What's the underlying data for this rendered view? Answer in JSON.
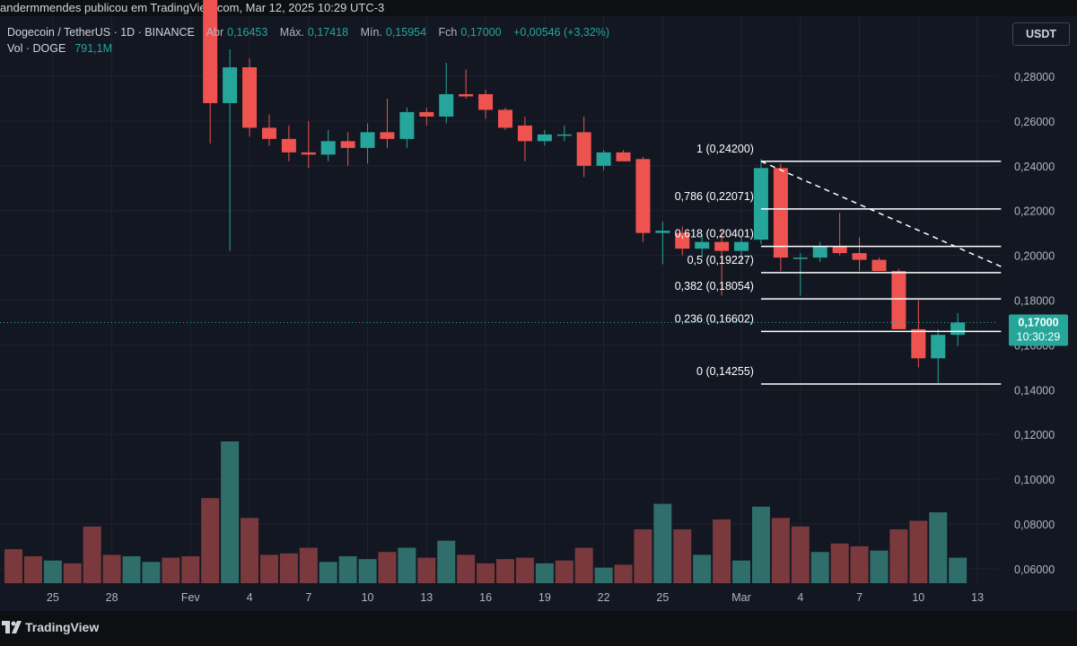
{
  "header": {
    "published_by": "andermmendes publicou em TradingView.com, Mar 12, 2025 10:29 UTC-3"
  },
  "legend": {
    "symbol": "Dogecoin / TetherUS · 1D · BINANCE",
    "open_label": "Abr",
    "open_value": "0,16453",
    "high_label": "Máx.",
    "high_value": "0,17418",
    "low_label": "Mín.",
    "low_value": "0,15954",
    "close_label": "Fch",
    "close_value": "0,17000",
    "change": "+0,00546 (+3,32%)",
    "volume_label": "Vol · DOGE",
    "volume_value": "791,1M"
  },
  "currency_button": "USDT",
  "price_tag": {
    "price": "0,17000",
    "countdown": "10:30:29"
  },
  "footer": {
    "logo_text": "TradingView"
  },
  "colors": {
    "background": "#131722",
    "up": "#26a69a",
    "down": "#ef5350",
    "grid": "#1f2330",
    "fib_line": "#ffffff"
  },
  "chart_data": {
    "type": "candlestick",
    "y_axis": {
      "ticks": [
        0.28,
        0.26,
        0.24,
        0.22,
        0.2,
        0.18,
        0.16,
        0.14,
        0.12,
        0.1,
        0.08,
        0.06
      ],
      "tick_labels": [
        "0,28000",
        "0,26000",
        "0,24000",
        "0,22000",
        "0,20000",
        "0,18000",
        "0,16000",
        "0,14000",
        "0,12000",
        "0,10000",
        "0,08000",
        "0,06000"
      ],
      "position": "right"
    },
    "x_axis": {
      "labels": [
        {
          "day": 2,
          "text": "25"
        },
        {
          "day": 5,
          "text": "28"
        },
        {
          "day": 9,
          "text": "Fev"
        },
        {
          "day": 12,
          "text": "4"
        },
        {
          "day": 15,
          "text": "7"
        },
        {
          "day": 18,
          "text": "10"
        },
        {
          "day": 21,
          "text": "13"
        },
        {
          "day": 24,
          "text": "16"
        },
        {
          "day": 27,
          "text": "19"
        },
        {
          "day": 30,
          "text": "22"
        },
        {
          "day": 33,
          "text": "25"
        },
        {
          "day": 37,
          "text": "Mar"
        },
        {
          "day": 40,
          "text": "4"
        },
        {
          "day": 43,
          "text": "7"
        },
        {
          "day": 46,
          "text": "10"
        },
        {
          "day": 49,
          "text": "13"
        }
      ]
    },
    "candles": [
      {
        "day": 10,
        "o": 0.35,
        "h": 0.36,
        "l": 0.25,
        "c": 0.268
      },
      {
        "day": 11,
        "o": 0.268,
        "h": 0.292,
        "l": 0.202,
        "c": 0.284
      },
      {
        "day": 12,
        "o": 0.284,
        "h": 0.288,
        "l": 0.253,
        "c": 0.257
      },
      {
        "day": 13,
        "o": 0.257,
        "h": 0.263,
        "l": 0.249,
        "c": 0.252
      },
      {
        "day": 14,
        "o": 0.252,
        "h": 0.258,
        "l": 0.242,
        "c": 0.246
      },
      {
        "day": 15,
        "o": 0.246,
        "h": 0.26,
        "l": 0.239,
        "c": 0.245
      },
      {
        "day": 16,
        "o": 0.245,
        "h": 0.256,
        "l": 0.242,
        "c": 0.251
      },
      {
        "day": 17,
        "o": 0.251,
        "h": 0.255,
        "l": 0.24,
        "c": 0.248
      },
      {
        "day": 18,
        "o": 0.248,
        "h": 0.259,
        "l": 0.241,
        "c": 0.255
      },
      {
        "day": 19,
        "o": 0.255,
        "h": 0.27,
        "l": 0.248,
        "c": 0.252
      },
      {
        "day": 20,
        "o": 0.252,
        "h": 0.266,
        "l": 0.248,
        "c": 0.264
      },
      {
        "day": 21,
        "o": 0.264,
        "h": 0.266,
        "l": 0.258,
        "c": 0.262
      },
      {
        "day": 22,
        "o": 0.262,
        "h": 0.286,
        "l": 0.259,
        "c": 0.272
      },
      {
        "day": 23,
        "o": 0.272,
        "h": 0.283,
        "l": 0.27,
        "c": 0.271
      },
      {
        "day": 24,
        "o": 0.272,
        "h": 0.274,
        "l": 0.261,
        "c": 0.265
      },
      {
        "day": 25,
        "o": 0.265,
        "h": 0.266,
        "l": 0.256,
        "c": 0.257
      },
      {
        "day": 26,
        "o": 0.258,
        "h": 0.262,
        "l": 0.242,
        "c": 0.251
      },
      {
        "day": 27,
        "o": 0.251,
        "h": 0.256,
        "l": 0.249,
        "c": 0.254
      },
      {
        "day": 28,
        "o": 0.254,
        "h": 0.258,
        "l": 0.251,
        "c": 0.254
      },
      {
        "day": 29,
        "o": 0.255,
        "h": 0.262,
        "l": 0.235,
        "c": 0.24
      },
      {
        "day": 30,
        "o": 0.24,
        "h": 0.247,
        "l": 0.238,
        "c": 0.246
      },
      {
        "day": 31,
        "o": 0.246,
        "h": 0.247,
        "l": 0.242,
        "c": 0.242
      },
      {
        "day": 32,
        "o": 0.243,
        "h": 0.244,
        "l": 0.206,
        "c": 0.21
      },
      {
        "day": 33,
        "o": 0.21,
        "h": 0.215,
        "l": 0.196,
        "c": 0.211
      },
      {
        "day": 34,
        "o": 0.21,
        "h": 0.213,
        "l": 0.2,
        "c": 0.203
      },
      {
        "day": 35,
        "o": 0.203,
        "h": 0.209,
        "l": 0.199,
        "c": 0.206
      },
      {
        "day": 36,
        "o": 0.206,
        "h": 0.211,
        "l": 0.182,
        "c": 0.202
      },
      {
        "day": 37,
        "o": 0.202,
        "h": 0.208,
        "l": 0.196,
        "c": 0.206
      },
      {
        "day": 38,
        "o": 0.207,
        "h": 0.243,
        "l": 0.205,
        "c": 0.239
      },
      {
        "day": 39,
        "o": 0.239,
        "h": 0.241,
        "l": 0.193,
        "c": 0.199
      },
      {
        "day": 40,
        "o": 0.199,
        "h": 0.201,
        "l": 0.182,
        "c": 0.199
      },
      {
        "day": 41,
        "o": 0.199,
        "h": 0.206,
        "l": 0.197,
        "c": 0.204
      },
      {
        "day": 42,
        "o": 0.204,
        "h": 0.219,
        "l": 0.2,
        "c": 0.201
      },
      {
        "day": 43,
        "o": 0.201,
        "h": 0.208,
        "l": 0.193,
        "c": 0.198
      },
      {
        "day": 44,
        "o": 0.198,
        "h": 0.199,
        "l": 0.193,
        "c": 0.193
      },
      {
        "day": 45,
        "o": 0.193,
        "h": 0.194,
        "l": 0.167,
        "c": 0.167
      },
      {
        "day": 46,
        "o": 0.167,
        "h": 0.18,
        "l": 0.15,
        "c": 0.154
      },
      {
        "day": 47,
        "o": 0.154,
        "h": 0.167,
        "l": 0.143,
        "c": 0.1645
      },
      {
        "day": 48,
        "o": 0.1645,
        "h": 0.1742,
        "l": 0.1595,
        "c": 0.17
      }
    ],
    "volume": [
      {
        "day": 0,
        "v": 0.24,
        "up": false
      },
      {
        "day": 1,
        "v": 0.19,
        "up": false
      },
      {
        "day": 2,
        "v": 0.16,
        "up": true
      },
      {
        "day": 3,
        "v": 0.14,
        "up": false
      },
      {
        "day": 4,
        "v": 0.4,
        "up": false
      },
      {
        "day": 5,
        "v": 0.2,
        "up": false
      },
      {
        "day": 6,
        "v": 0.19,
        "up": true
      },
      {
        "day": 7,
        "v": 0.15,
        "up": true
      },
      {
        "day": 8,
        "v": 0.18,
        "up": false
      },
      {
        "day": 9,
        "v": 0.19,
        "up": false
      },
      {
        "day": 10,
        "v": 0.6,
        "up": false
      },
      {
        "day": 11,
        "v": 1.0,
        "up": true
      },
      {
        "day": 12,
        "v": 0.46,
        "up": false
      },
      {
        "day": 13,
        "v": 0.2,
        "up": false
      },
      {
        "day": 14,
        "v": 0.21,
        "up": false
      },
      {
        "day": 15,
        "v": 0.25,
        "up": false
      },
      {
        "day": 16,
        "v": 0.15,
        "up": true
      },
      {
        "day": 17,
        "v": 0.19,
        "up": true
      },
      {
        "day": 18,
        "v": 0.17,
        "up": true
      },
      {
        "day": 19,
        "v": 0.22,
        "up": false
      },
      {
        "day": 20,
        "v": 0.25,
        "up": true
      },
      {
        "day": 21,
        "v": 0.18,
        "up": false
      },
      {
        "day": 22,
        "v": 0.3,
        "up": true
      },
      {
        "day": 23,
        "v": 0.2,
        "up": false
      },
      {
        "day": 24,
        "v": 0.14,
        "up": false
      },
      {
        "day": 25,
        "v": 0.17,
        "up": false
      },
      {
        "day": 26,
        "v": 0.18,
        "up": false
      },
      {
        "day": 27,
        "v": 0.14,
        "up": true
      },
      {
        "day": 28,
        "v": 0.16,
        "up": false
      },
      {
        "day": 29,
        "v": 0.25,
        "up": false
      },
      {
        "day": 30,
        "v": 0.11,
        "up": true
      },
      {
        "day": 31,
        "v": 0.13,
        "up": false
      },
      {
        "day": 32,
        "v": 0.38,
        "up": false
      },
      {
        "day": 33,
        "v": 0.56,
        "up": true
      },
      {
        "day": 34,
        "v": 0.38,
        "up": false
      },
      {
        "day": 35,
        "v": 0.2,
        "up": true
      },
      {
        "day": 36,
        "v": 0.45,
        "up": false
      },
      {
        "day": 37,
        "v": 0.16,
        "up": true
      },
      {
        "day": 38,
        "v": 0.54,
        "up": true
      },
      {
        "day": 39,
        "v": 0.46,
        "up": false
      },
      {
        "day": 40,
        "v": 0.4,
        "up": false
      },
      {
        "day": 41,
        "v": 0.22,
        "up": true
      },
      {
        "day": 42,
        "v": 0.28,
        "up": false
      },
      {
        "day": 43,
        "v": 0.26,
        "up": false
      },
      {
        "day": 44,
        "v": 0.23,
        "up": true
      },
      {
        "day": 45,
        "v": 0.38,
        "up": false
      },
      {
        "day": 46,
        "v": 0.44,
        "up": false
      },
      {
        "day": 47,
        "v": 0.5,
        "up": true
      },
      {
        "day": 48,
        "v": 0.18,
        "up": true
      }
    ],
    "volume_scale_note": "relative",
    "fibonacci": {
      "start_day": 38,
      "end_day": 50.2,
      "levels": [
        {
          "ratio": "1",
          "price": 0.242,
          "label": "1 (0,24200)"
        },
        {
          "ratio": "0,786",
          "price": 0.22071,
          "label": "0,786 (0,22071)"
        },
        {
          "ratio": "0,618",
          "price": 0.20401,
          "label": "0,618 (0,20401)"
        },
        {
          "ratio": "0,5",
          "price": 0.19227,
          "label": "0,5 (0,19227)"
        },
        {
          "ratio": "0,382",
          "price": 0.18054,
          "label": "0,382 (0,18054)"
        },
        {
          "ratio": "0,236",
          "price": 0.16602,
          "label": "0,236 (0,16602)"
        },
        {
          "ratio": "0",
          "price": 0.14255,
          "label": "0 (0,14255)"
        }
      ],
      "trend_line": {
        "from_day": 38,
        "from_price": 0.242,
        "to_day": 50.2,
        "to_price": 0.195
      }
    },
    "current_price": 0.17
  }
}
